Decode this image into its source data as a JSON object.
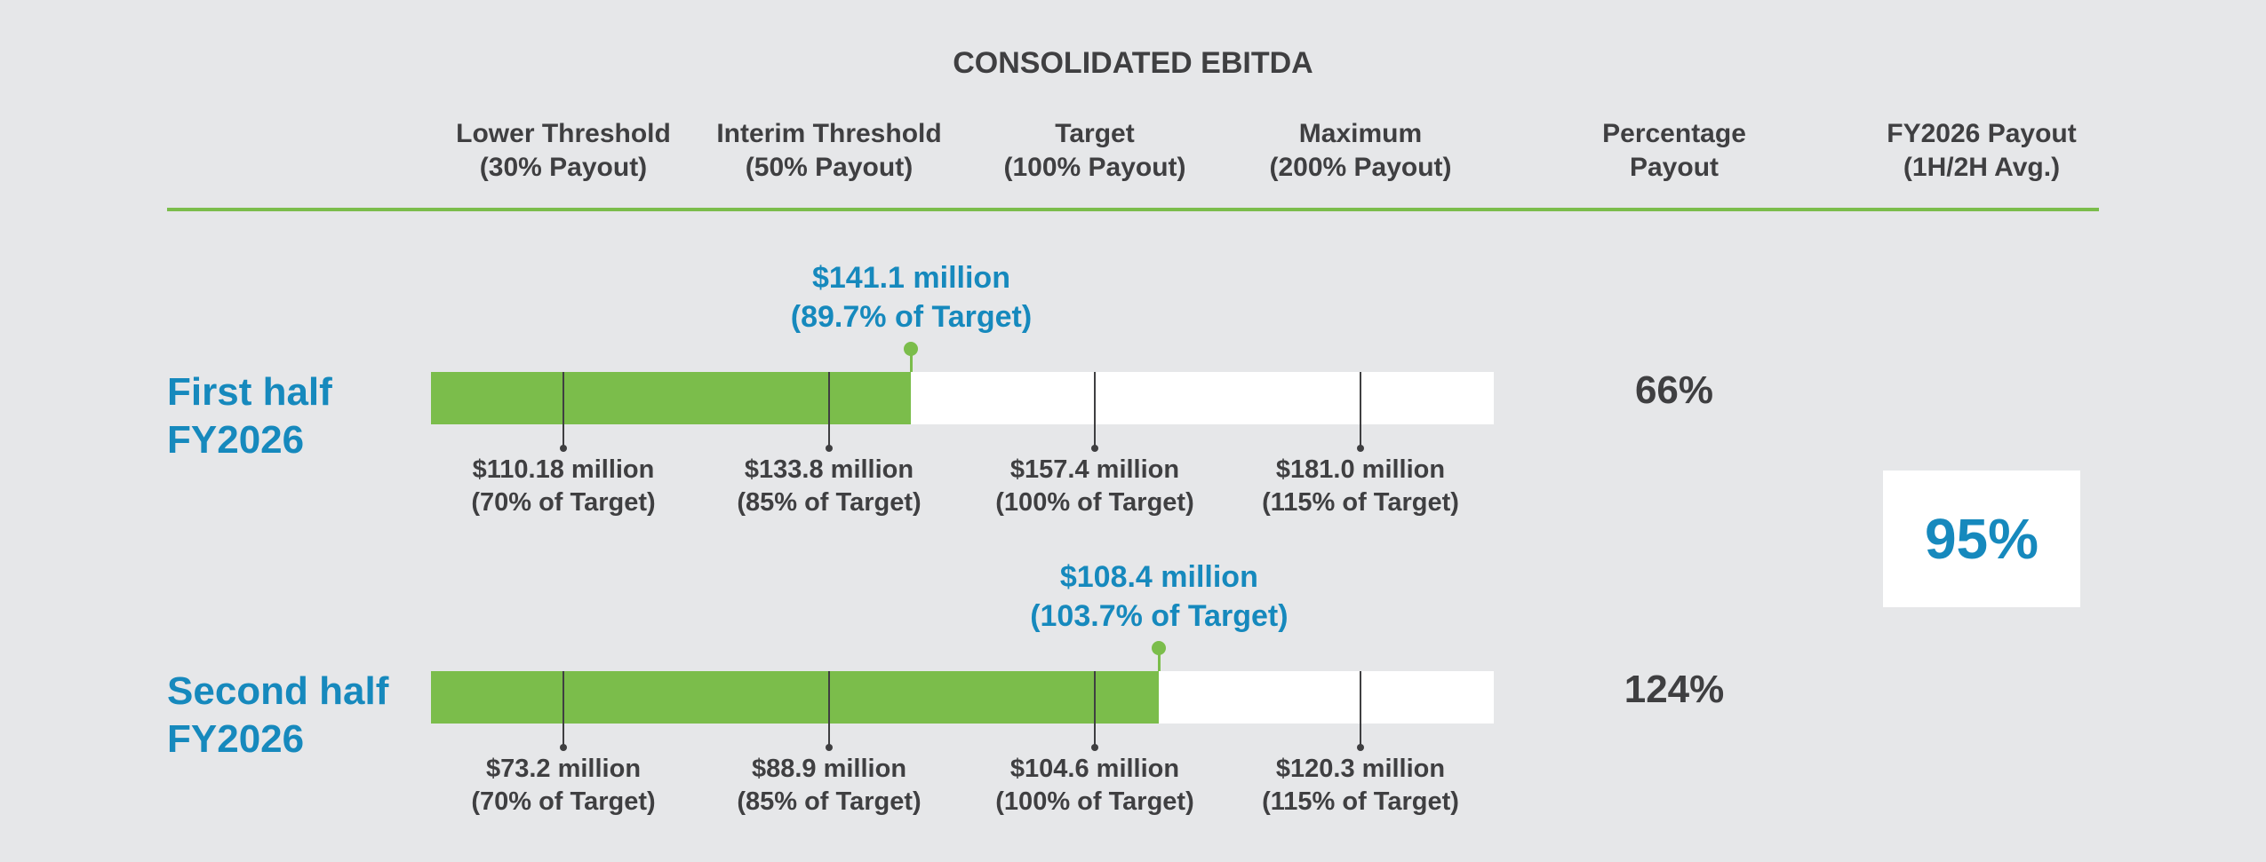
{
  "title": "CONSOLIDATED EBITDA",
  "columns": [
    {
      "line1": "Lower Threshold",
      "line2": "(30% Payout)"
    },
    {
      "line1": "Interim Threshold",
      "line2": "(50% Payout)"
    },
    {
      "line1": "Target",
      "line2": "(100% Payout)"
    },
    {
      "line1": "Maximum",
      "line2": "(200% Payout)"
    },
    {
      "line1": "Percentage",
      "line2": "Payout"
    },
    {
      "line1": "FY2026 Payout",
      "line2": "(1H/2H Avg.)"
    }
  ],
  "colors": {
    "green": "#7bbd4b",
    "blue": "#1689bd",
    "text": "#3f3f41",
    "track": "#ffffff",
    "background": "#e6e7e9"
  },
  "chart_data": {
    "type": "bar",
    "title": "CONSOLIDATED EBITDA",
    "units": "$ million",
    "rows": [
      {
        "label_line1": "First half",
        "label_line2": "FY2026",
        "actual": 141.1,
        "actual_line1": "$141.1 million",
        "actual_line2": "(89.7% of Target)",
        "percentage_payout": "66%",
        "thresholds": [
          {
            "value": 110.18,
            "line1": "$110.18 million",
            "line2": "(70% of Target)"
          },
          {
            "value": 133.8,
            "line1": "$133.8 million",
            "line2": "(85% of Target)"
          },
          {
            "value": 157.4,
            "line1": "$157.4 million",
            "line2": "(100% of Target)"
          },
          {
            "value": 181.0,
            "line1": "$181.0 million",
            "line2": "(115% of Target)"
          }
        ]
      },
      {
        "label_line1": "Second half",
        "label_line2": "FY2026",
        "actual": 108.4,
        "actual_line1": "$108.4 million",
        "actual_line2": "(103.7% of Target)",
        "percentage_payout": "124%",
        "thresholds": [
          {
            "value": 73.2,
            "line1": "$73.2 million",
            "line2": "(70% of Target)"
          },
          {
            "value": 88.9,
            "line1": "$88.9 million",
            "line2": "(85% of Target)"
          },
          {
            "value": 104.6,
            "line1": "$104.6 million",
            "line2": "(100% of Target)"
          },
          {
            "value": 120.3,
            "line1": "$120.3 million",
            "line2": "(115% of Target)"
          }
        ]
      }
    ],
    "fy2026_payout": "95%"
  }
}
